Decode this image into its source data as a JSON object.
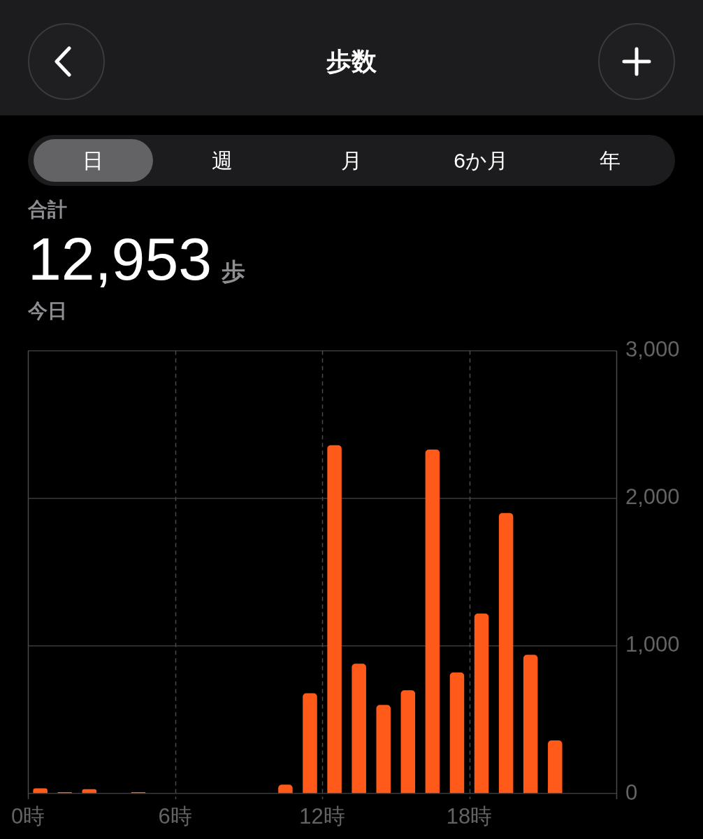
{
  "chart_data": {
    "type": "histogram",
    "title": "歩数",
    "annotations": [
      "日",
      "週",
      "月",
      "6か月",
      "年",
      "合計",
      "12,953",
      "歩",
      "今日"
    ],
    "bins": [
      0,
      1,
      2,
      3,
      4,
      5,
      6,
      7,
      8,
      9,
      10,
      11,
      12,
      13,
      14,
      15,
      16,
      17,
      18,
      19,
      20,
      21,
      22,
      23,
      24
    ],
    "values": [
      35,
      10,
      30,
      null,
      10,
      null,
      null,
      null,
      null,
      null,
      60,
      680,
      2360,
      880,
      600,
      700,
      2330,
      820,
      1220,
      1900,
      940,
      360,
      null,
      null
    ],
    "color": "#ff5a1a",
    "xlim": [
      0,
      24
    ],
    "xticks": [
      {
        "value": 0,
        "label": "0時"
      },
      {
        "value": 6,
        "label": "6時"
      },
      {
        "value": 12,
        "label": "12時"
      },
      {
        "value": 18,
        "label": "18時"
      }
    ],
    "ylim": [
      0,
      3000
    ],
    "yticks": [
      0,
      {
        "value": 1000,
        "label": "1,000"
      },
      {
        "value": 2000,
        "label": "2,000"
      },
      {
        "value": 3000,
        "label": "3,000"
      }
    ],
    "grid": true
  }
}
